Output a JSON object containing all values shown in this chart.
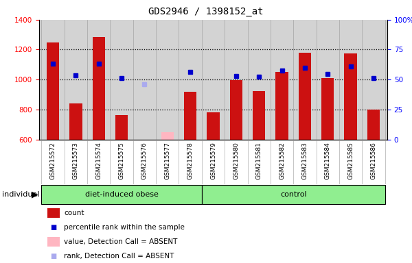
{
  "title": "GDS2946 / 1398152_at",
  "samples": [
    "GSM215572",
    "GSM215573",
    "GSM215574",
    "GSM215575",
    "GSM215576",
    "GSM215577",
    "GSM215578",
    "GSM215579",
    "GSM215580",
    "GSM215581",
    "GSM215582",
    "GSM215583",
    "GSM215584",
    "GSM215585",
    "GSM215586"
  ],
  "counts": [
    1248,
    840,
    1285,
    763,
    null,
    null,
    920,
    780,
    995,
    925,
    1050,
    1180,
    1010,
    1175,
    800
  ],
  "absent_counts": [
    null,
    null,
    null,
    null,
    null,
    648,
    null,
    null,
    null,
    null,
    null,
    null,
    null,
    null,
    null
  ],
  "ranks": [
    1108,
    1028,
    1106,
    1010,
    null,
    null,
    1053,
    null,
    1022,
    1020,
    1060,
    1080,
    1038,
    1090,
    1010
  ],
  "absent_rank_vals": [
    null,
    null,
    null,
    null,
    968,
    null,
    null,
    null,
    null,
    null,
    null,
    null,
    null,
    null,
    null
  ],
  "ylim_left": [
    600,
    1400
  ],
  "ylim_right": [
    0,
    100
  ],
  "right_ticks": [
    0,
    25,
    50,
    75,
    100
  ],
  "right_tick_labels": [
    "0",
    "25",
    "50",
    "75",
    "100%"
  ],
  "left_ticks": [
    600,
    800,
    1000,
    1200,
    1400
  ],
  "bar_color": "#CC1111",
  "absent_bar_color": "#FFB6C1",
  "rank_color": "#0000CC",
  "absent_rank_color": "#AAAAEE",
  "bg_color": "#D3D3D3",
  "bar_width": 0.55,
  "grid_lines": [
    800,
    1000,
    1200
  ],
  "n_obese": 7,
  "n_control": 8
}
